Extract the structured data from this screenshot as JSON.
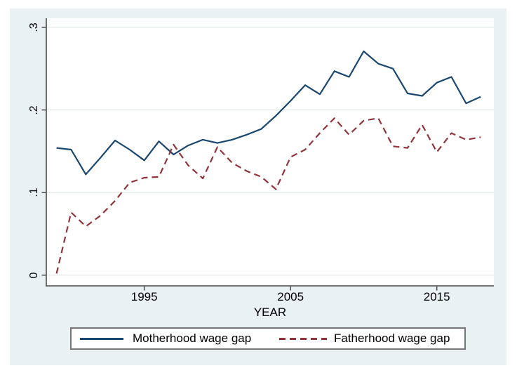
{
  "colors": {
    "navy": "#1a476f",
    "maroon": "#90353b",
    "figure_background": "#e9f1f2",
    "plot_background": "#ffffff",
    "gridline": "#e2e8e6",
    "axis": "#4a4a4a",
    "text": "#000000",
    "legend_border": "#757575"
  },
  "chart_data": {
    "type": "line",
    "title": "",
    "xlabel": "YEAR",
    "ylabel": "",
    "grid": "horizontal-only",
    "legend_position": "bottom-box",
    "xlim": [
      1988.3,
      2018.9
    ],
    "ylim": [
      -0.013,
      0.311
    ],
    "x_ticks": [
      {
        "value": 1995,
        "label": "1995"
      },
      {
        "value": 2005,
        "label": "2005"
      },
      {
        "value": 2015,
        "label": "2015"
      }
    ],
    "y_ticks": [
      {
        "value": 0.0,
        "label": "0"
      },
      {
        "value": 0.1,
        "label": ".1"
      },
      {
        "value": 0.2,
        "label": ".2"
      },
      {
        "value": 0.3,
        "label": ".3"
      }
    ],
    "x": [
      1989,
      1990,
      1991,
      1992,
      1993,
      1994,
      1995,
      1996,
      1997,
      1998,
      1999,
      2000,
      2001,
      2002,
      2003,
      2004,
      2005,
      2006,
      2007,
      2008,
      2009,
      2010,
      2011,
      2012,
      2013,
      2014,
      2015,
      2016,
      2017,
      2018
    ],
    "series": [
      {
        "name": "Motherhood wage gap",
        "line_style": "solid",
        "color": "#1a476f",
        "values": [
          0.154,
          0.152,
          0.122,
          0.142,
          0.163,
          0.152,
          0.139,
          0.162,
          0.146,
          0.157,
          0.164,
          0.16,
          0.164,
          0.17,
          0.177,
          0.193,
          0.211,
          0.23,
          0.219,
          0.247,
          0.24,
          0.271,
          0.256,
          0.25,
          0.22,
          0.217,
          0.233,
          0.24,
          0.208,
          0.216
        ]
      },
      {
        "name": "Fatherhood wage gap",
        "line_style": "dashed",
        "color": "#90353b",
        "values": [
          0.002,
          0.076,
          0.059,
          0.072,
          0.09,
          0.112,
          0.118,
          0.119,
          0.158,
          0.133,
          0.117,
          0.155,
          0.136,
          0.126,
          0.119,
          0.104,
          0.143,
          0.152,
          0.172,
          0.19,
          0.17,
          0.187,
          0.19,
          0.156,
          0.154,
          0.182,
          0.149,
          0.172,
          0.164,
          0.167
        ]
      }
    ]
  }
}
